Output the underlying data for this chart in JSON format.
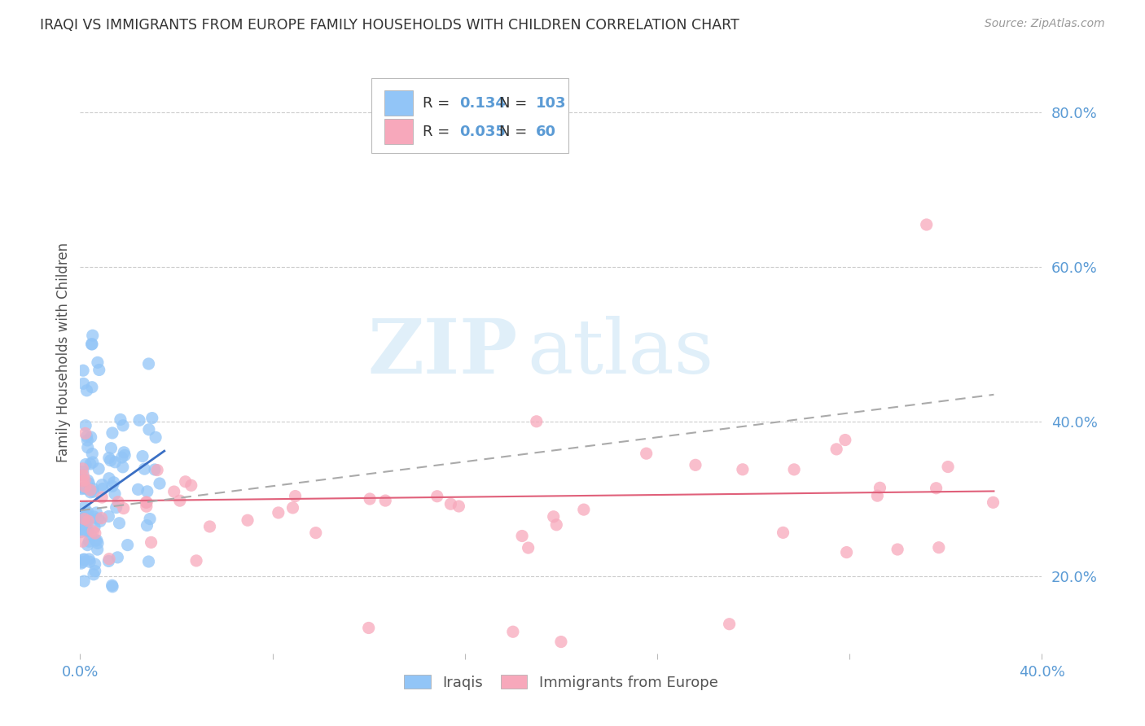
{
  "title": "IRAQI VS IMMIGRANTS FROM EUROPE FAMILY HOUSEHOLDS WITH CHILDREN CORRELATION CHART",
  "source": "Source: ZipAtlas.com",
  "ylabel": "Family Households with Children",
  "right_yticks": [
    "80.0%",
    "60.0%",
    "40.0%",
    "20.0%"
  ],
  "right_ytick_vals": [
    0.8,
    0.6,
    0.4,
    0.2
  ],
  "xlim": [
    0.0,
    0.4
  ],
  "ylim": [
    0.1,
    0.88
  ],
  "iraqis_R": "0.134",
  "iraqis_N": "103",
  "europe_R": "0.035",
  "europe_N": "60",
  "iraqis_color": "#92c5f7",
  "europe_color": "#f7a8bb",
  "iraqis_line_color": "#3a6fc4",
  "europe_line_color": "#e0607a",
  "trendline_color": "#aaaaaa",
  "background_color": "#ffffff",
  "grid_color": "#cccccc",
  "title_color": "#333333",
  "axis_label_color": "#5b9bd5",
  "legend_text_color": "#333333",
  "legend_value_color": "#5b9bd5"
}
